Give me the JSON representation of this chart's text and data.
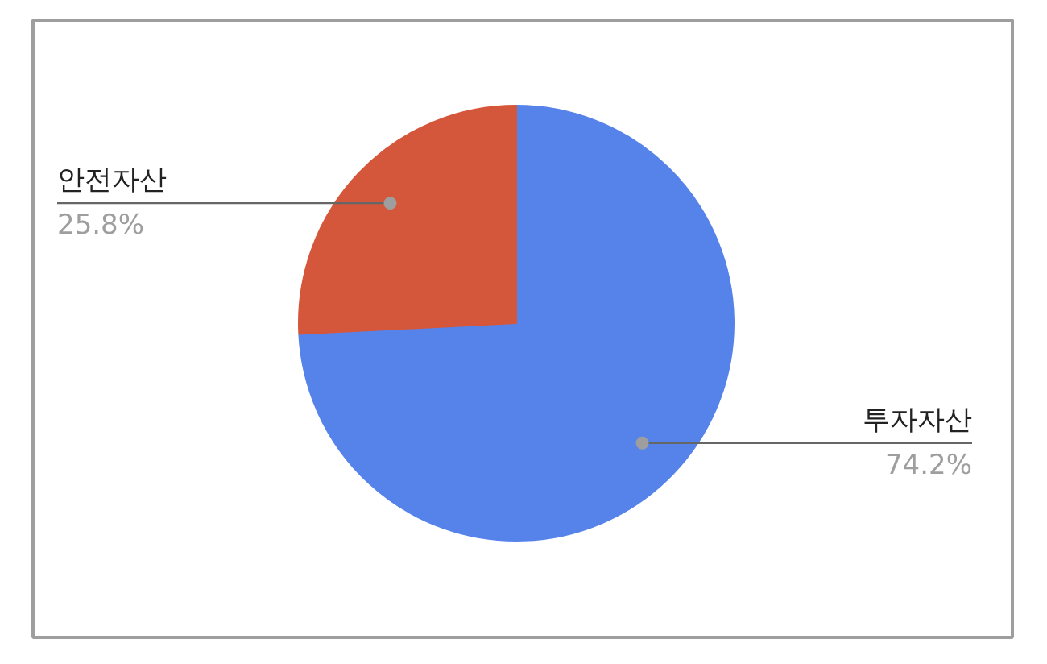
{
  "chart_data": {
    "type": "pie",
    "categories": [
      "투자자산",
      "안전자산"
    ],
    "values": [
      74.2,
      25.8
    ],
    "colors": [
      "#5683ea",
      "#d5573b"
    ],
    "value_labels": [
      "74.2%",
      "25.8%"
    ]
  }
}
